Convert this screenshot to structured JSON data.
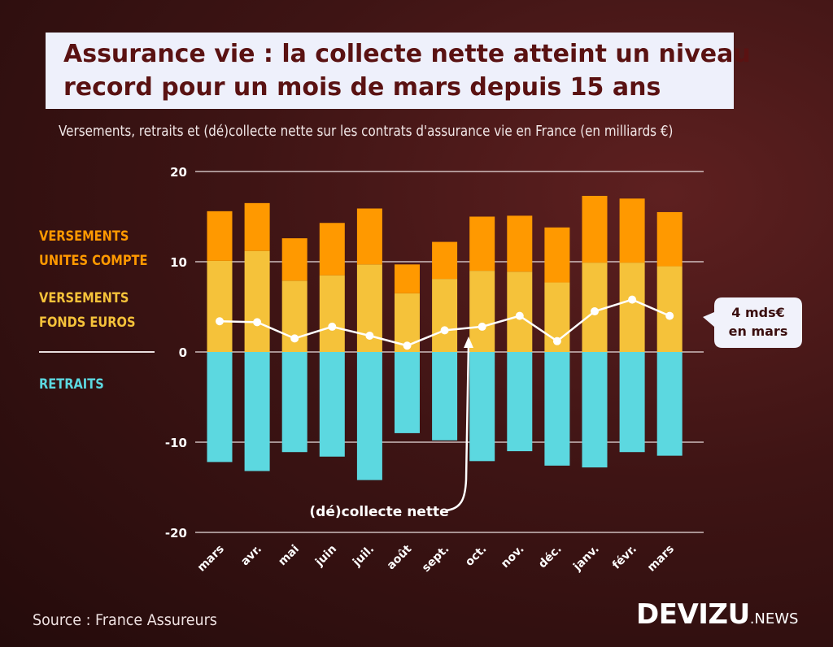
{
  "title_lines": [
    "Assurance vie : la collecte nette atteint un niveau",
    "record pour un mois de mars depuis 15 ans"
  ],
  "subtitle": "Versements, retraits et (dé)collecte nette sur les contrats d'assurance vie en France (en milliards €)",
  "legend": {
    "unites_compte": [
      "VERSEMENTS",
      "UNITES COMPTE"
    ],
    "fonds_euros": [
      "VERSEMENTS",
      "FONDS EUROS"
    ],
    "retraits": "RETRAITS"
  },
  "annotations": {
    "callout_lines": [
      "4 mds€",
      "en mars"
    ],
    "net_label": "(dé)collecte nette"
  },
  "source": "Source : France Assureurs",
  "brand": {
    "main": "DEVIZU",
    "suffix": ".NEWS"
  },
  "colors": {
    "unites_compte": "#ff9900",
    "fonds_euros": "#f5c23a",
    "retraits": "#5cd8e0",
    "net_line": "#ffffff",
    "title_bg": "#eef0fb",
    "title_text": "#5a1212"
  },
  "chart_data": {
    "type": "bar",
    "stacked": true,
    "categories": [
      "mars",
      "avr.",
      "mai",
      "juin",
      "juil.",
      "août",
      "sept.",
      "oct.",
      "nov.",
      "déc.",
      "janv.",
      "févr.",
      "mars"
    ],
    "series": [
      {
        "name": "VERSEMENTS FONDS EUROS",
        "values": [
          10.1,
          11.2,
          7.9,
          8.5,
          9.7,
          6.5,
          8.1,
          9.0,
          8.9,
          7.7,
          9.9,
          9.9,
          9.5
        ]
      },
      {
        "name": "VERSEMENTS UNITES COMPTE",
        "values": [
          5.5,
          5.3,
          4.7,
          5.8,
          6.2,
          3.2,
          4.1,
          6.0,
          6.2,
          6.1,
          7.4,
          7.1,
          6.0
        ]
      },
      {
        "name": "RETRAITS",
        "values": [
          -12.2,
          -13.2,
          -11.1,
          -11.6,
          -14.2,
          -9.0,
          -9.8,
          -12.1,
          -11.0,
          -12.6,
          -12.8,
          -11.1,
          -11.5
        ]
      },
      {
        "name": "(dé)collecte nette",
        "type": "line",
        "values": [
          3.4,
          3.3,
          1.5,
          2.8,
          1.8,
          0.7,
          2.4,
          2.8,
          4.0,
          1.2,
          4.5,
          5.8,
          4.0
        ]
      }
    ],
    "yticks": [
      20,
      10,
      0,
      -10,
      -20
    ],
    "ylim": [
      -20,
      20
    ],
    "grid": true,
    "xlabel": "",
    "ylabel": ""
  }
}
